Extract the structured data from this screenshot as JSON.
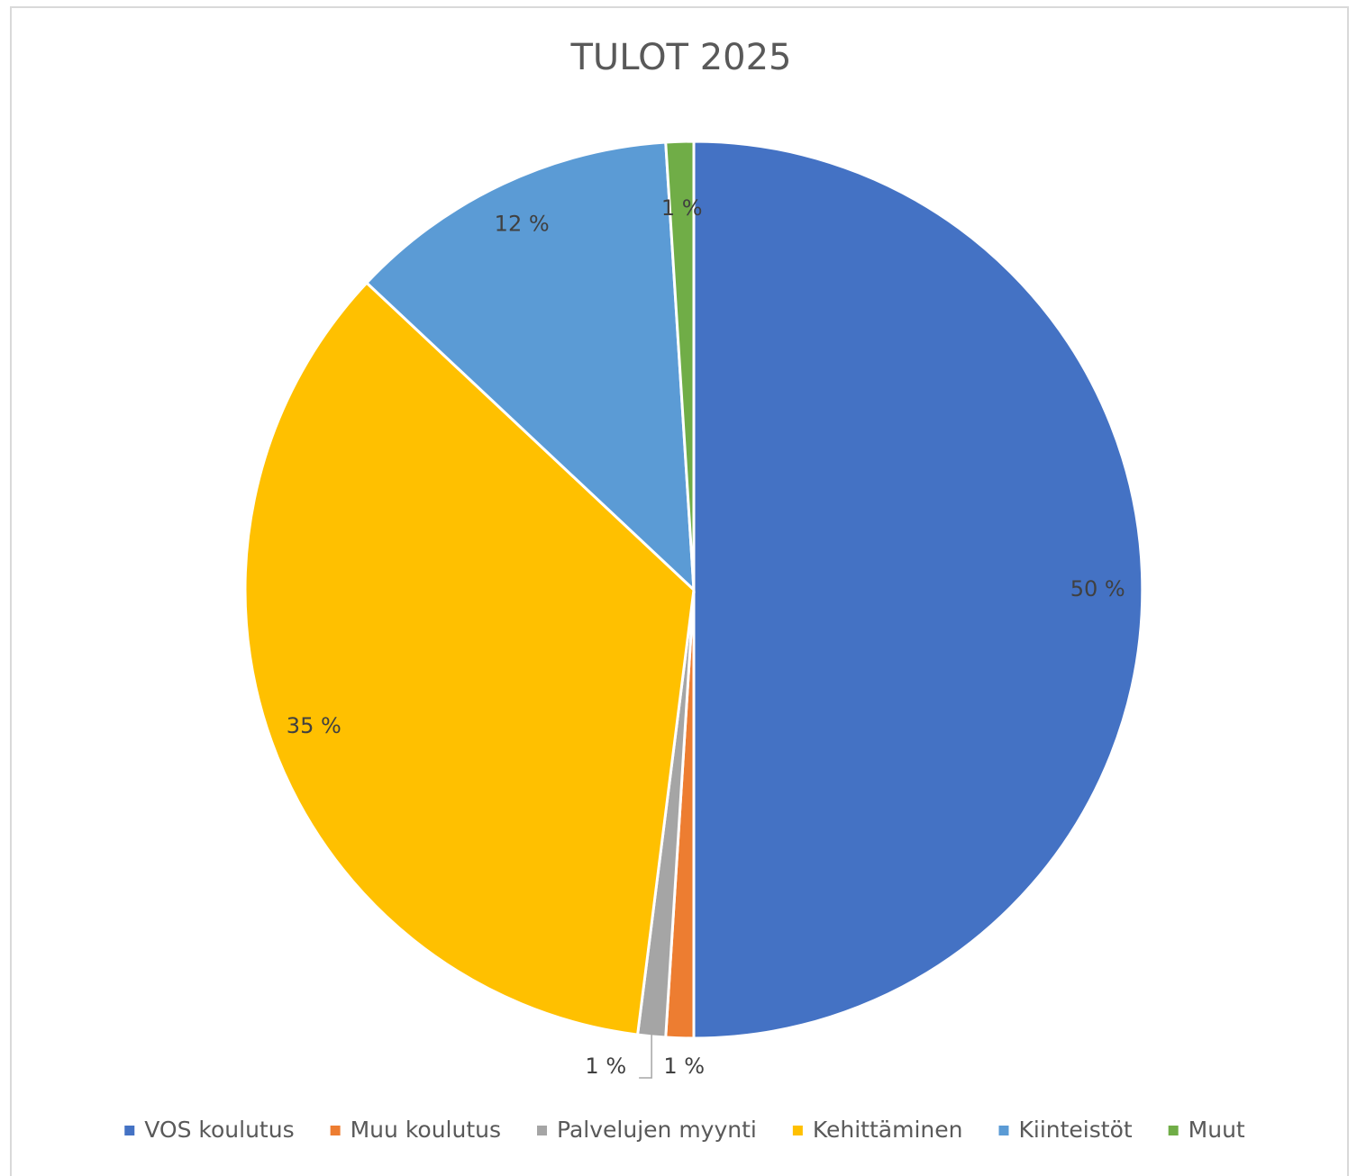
{
  "chart_data": {
    "type": "pie",
    "title": "TULOT 2025",
    "categories": [
      "VOS koulutus",
      "Muu koulutus",
      "Palvelujen myynti",
      "Kehittäminen",
      "Kiinteistöt",
      "Muut"
    ],
    "values": [
      50,
      1,
      1,
      35,
      12,
      1
    ],
    "value_labels": [
      "50 %",
      "1 %",
      "1 %",
      "35 %",
      "12 %",
      "1 %"
    ],
    "colors": [
      "#4472c4",
      "#ed7d31",
      "#a5a5a5",
      "#ffc000",
      "#5b9bd5",
      "#70ad47"
    ],
    "legend": "bottom"
  }
}
